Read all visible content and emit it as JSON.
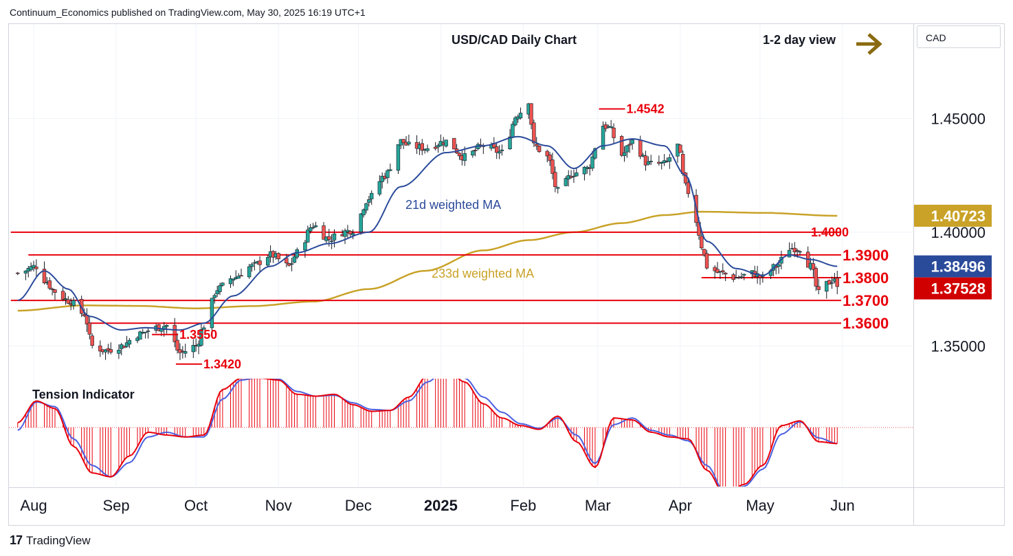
{
  "header": {
    "publisher": "Continuum_Economics published on TradingView.com, May 30, 2025 16:19 UTC+1"
  },
  "symbol_box": {
    "label": "CAD"
  },
  "footer": {
    "logo": "17",
    "brand": "TradingView"
  },
  "colors": {
    "up_candle": "#26a69a",
    "down_candle": "#ef5350",
    "ma21": "#2a4a9a",
    "ma233": "#c9a227",
    "level_line": "#e8000b",
    "tension_hist": "#e8000b",
    "tension_fast": "#e8000b",
    "tension_slow": "#4a5fe0",
    "arrow": "#8a6a10"
  },
  "chart_data": {
    "type": "candlestick",
    "title": "USD/CAD Daily Chart",
    "view_label": "1-2 day view",
    "view_icon": "arrow-right-icon",
    "x_ticks": [
      "Aug",
      "Sep",
      "Oct",
      "Nov",
      "Dec",
      "2025",
      "Feb",
      "Mar",
      "Apr",
      "May",
      "Jun"
    ],
    "y_ticks": [
      "1.45000",
      "1.40000",
      "1.35000"
    ],
    "y_tick_values": [
      1.45,
      1.4,
      1.35
    ],
    "ylim": [
      1.3365,
      1.4915
    ],
    "price_tags": [
      {
        "label": "1.40723",
        "value": 1.40723,
        "bg": "#c9a227",
        "fg": "#131722"
      },
      {
        "label": "1.38496",
        "value": 1.38496,
        "bg": "#2a4a9a",
        "fg": "#ffffff"
      },
      {
        "label": "1.37528",
        "value": 1.37528,
        "bg": "#d10000",
        "fg": "#ffffff"
      }
    ],
    "levels": [
      {
        "label": "1.4000",
        "value": 1.4,
        "x_from": "Jul 26",
        "style": "long"
      },
      {
        "label": "1.3900",
        "value": 1.39,
        "x_from": "Jul 30",
        "style": "long"
      },
      {
        "label": "1.3800",
        "value": 1.38,
        "x_from": "Apr 9",
        "style": "long"
      },
      {
        "label": "1.3700",
        "value": 1.37,
        "x_from": "Jul 26",
        "style": "long"
      },
      {
        "label": "1.3600",
        "value": 1.36,
        "x_from": "Aug 22",
        "style": "long"
      }
    ],
    "marked_levels": [
      {
        "label": "1.4542",
        "value": 1.4542,
        "date": "Mar 3"
      },
      {
        "label": "1.3550",
        "value": 1.355,
        "date": "Sep 16"
      },
      {
        "label": "1.3420",
        "value": 1.342,
        "date": "Sep 25"
      }
    ],
    "ma_labels": [
      {
        "label": "21d weighted MA",
        "color": "#2a4a9a"
      },
      {
        "label": "233d weighted MA",
        "color": "#c9a227"
      }
    ],
    "close_anchors": {
      "dates": [
        "Jul 26",
        "Aug 2",
        "Aug 5",
        "Aug 9",
        "Aug 14",
        "Aug 20",
        "Aug 23",
        "Aug 28",
        "Sep 3",
        "Sep 9",
        "Sep 16",
        "Sep 20",
        "Sep 25",
        "Oct 1",
        "Oct 4",
        "Oct 9",
        "Oct 15",
        "Oct 22",
        "Oct 29",
        "Nov 5",
        "Nov 8",
        "Nov 14",
        "Nov 20",
        "Nov 25",
        "Nov 29",
        "Dec 5",
        "Dec 11",
        "Dec 17",
        "Dec 20",
        "Dec 26",
        "Jan 3",
        "Jan 10",
        "Jan 17",
        "Jan 24",
        "Jan 30",
        "Feb 3",
        "Feb 5",
        "Feb 10",
        "Feb 14",
        "Feb 20",
        "Feb 25",
        "Mar 3",
        "Mar 5",
        "Mar 10",
        "Mar 14",
        "Mar 20",
        "Mar 26",
        "Mar 31",
        "Apr 3",
        "Apr 7",
        "Apr 9",
        "Apr 11",
        "Apr 16",
        "Apr 22",
        "Apr 28",
        "May 2",
        "May 7",
        "May 12",
        "May 16",
        "May 20",
        "May 23",
        "May 27",
        "May 29",
        "May 30"
      ],
      "values": [
        1.382,
        1.385,
        1.379,
        1.374,
        1.37,
        1.364,
        1.35,
        1.348,
        1.35,
        1.355,
        1.358,
        1.359,
        1.347,
        1.35,
        1.359,
        1.375,
        1.38,
        1.385,
        1.39,
        1.385,
        1.391,
        1.403,
        1.397,
        1.4,
        1.401,
        1.415,
        1.425,
        1.44,
        1.438,
        1.437,
        1.44,
        1.433,
        1.438,
        1.435,
        1.452,
        1.458,
        1.438,
        1.433,
        1.418,
        1.426,
        1.428,
        1.447,
        1.446,
        1.434,
        1.44,
        1.43,
        1.43,
        1.438,
        1.42,
        1.405,
        1.394,
        1.385,
        1.382,
        1.38,
        1.382,
        1.38,
        1.385,
        1.393,
        1.393,
        1.385,
        1.373,
        1.378,
        1.38,
        1.375
      ]
    },
    "ma21_anchors": {
      "dates": [
        "Jul 26",
        "Aug 5",
        "Aug 14",
        "Aug 22",
        "Sep 3",
        "Sep 12",
        "Sep 25",
        "Oct 4",
        "Oct 15",
        "Oct 29",
        "Nov 8",
        "Nov 20",
        "Dec 5",
        "Dec 17",
        "Jan 3",
        "Jan 17",
        "Jan 30",
        "Feb 10",
        "Feb 20",
        "Mar 3",
        "Mar 14",
        "Mar 26",
        "Apr 3",
        "Apr 11",
        "Apr 22",
        "May 2",
        "May 12",
        "May 20",
        "May 30"
      ],
      "values": [
        1.37,
        1.383,
        1.375,
        1.363,
        1.357,
        1.358,
        1.357,
        1.36,
        1.372,
        1.385,
        1.391,
        1.395,
        1.4,
        1.42,
        1.435,
        1.438,
        1.442,
        1.438,
        1.428,
        1.438,
        1.441,
        1.438,
        1.425,
        1.396,
        1.384,
        1.381,
        1.39,
        1.388,
        1.385
      ]
    },
    "ma233_anchors": {
      "dates": [
        "Jul 26",
        "Aug 20",
        "Sep 9",
        "Oct 1",
        "Oct 22",
        "Nov 14",
        "Dec 5",
        "Dec 26",
        "Jan 17",
        "Feb 3",
        "Feb 20",
        "Mar 10",
        "Mar 26",
        "Apr 9",
        "May 2",
        "May 30"
      ],
      "values": [
        1.3655,
        1.3678,
        1.3676,
        1.3665,
        1.3675,
        1.3695,
        1.375,
        1.383,
        1.392,
        1.3965,
        1.4,
        1.404,
        1.4075,
        1.409,
        1.4085,
        1.4072
      ]
    },
    "tension": {
      "title": "Tension Indicator",
      "dates": [
        "Jul 26",
        "Aug 2",
        "Aug 9",
        "Aug 16",
        "Aug 23",
        "Aug 30",
        "Sep 6",
        "Sep 13",
        "Sep 20",
        "Sep 27",
        "Oct 4",
        "Oct 11",
        "Oct 18",
        "Oct 25",
        "Nov 1",
        "Nov 8",
        "Nov 15",
        "Nov 22",
        "Nov 29",
        "Dec 6",
        "Dec 13",
        "Dec 20",
        "Dec 27",
        "Jan 3",
        "Jan 10",
        "Jan 17",
        "Jan 24",
        "Jan 31",
        "Feb 7",
        "Feb 14",
        "Feb 21",
        "Feb 28",
        "Mar 7",
        "Mar 14",
        "Mar 21",
        "Mar 28",
        "Apr 4",
        "Apr 11",
        "Apr 18",
        "Apr 25",
        "May 2",
        "May 9",
        "May 16",
        "May 23",
        "May 30"
      ],
      "fast": [
        0.05,
        0.28,
        0.2,
        -0.2,
        -0.48,
        -0.52,
        -0.3,
        -0.05,
        -0.08,
        -0.1,
        -0.08,
        0.4,
        0.52,
        0.52,
        0.5,
        0.35,
        0.33,
        0.35,
        0.24,
        0.17,
        0.18,
        0.32,
        0.55,
        0.62,
        0.48,
        0.25,
        0.1,
        0.02,
        -0.02,
        0.12,
        -0.15,
        -0.42,
        0.1,
        0.08,
        -0.05,
        -0.1,
        -0.12,
        -0.45,
        -0.72,
        -0.6,
        -0.4,
        0.02,
        0.07,
        -0.15,
        -0.17
      ],
      "slow": [
        -0.03,
        0.27,
        0.22,
        -0.12,
        -0.4,
        -0.52,
        -0.37,
        -0.1,
        -0.05,
        -0.1,
        -0.1,
        0.3,
        0.5,
        0.53,
        0.51,
        0.38,
        0.33,
        0.34,
        0.26,
        0.19,
        0.18,
        0.28,
        0.48,
        0.62,
        0.52,
        0.32,
        0.16,
        0.04,
        -0.01,
        0.1,
        -0.08,
        -0.38,
        0.03,
        0.1,
        -0.03,
        -0.08,
        -0.14,
        -0.4,
        -0.7,
        -0.62,
        -0.44,
        -0.07,
        0.06,
        -0.11,
        -0.17
      ]
    }
  }
}
